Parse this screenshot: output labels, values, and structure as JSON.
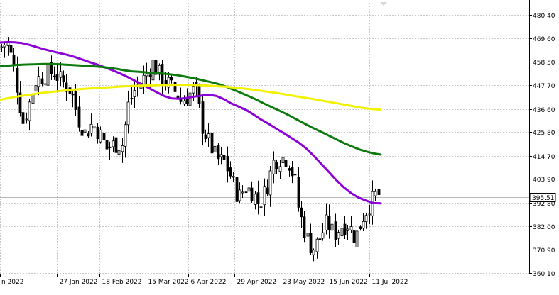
{
  "chart_data": {
    "type": "candlestick",
    "y_axis": {
      "ticks": [
        "480.40",
        "469.60",
        "458.50",
        "447.70",
        "436.60",
        "425.80",
        "414.70",
        "403.90",
        "392.80",
        "382.00",
        "370.90",
        "360.10"
      ],
      "range": [
        360.1,
        480.4
      ],
      "position": "right"
    },
    "x_axis": {
      "tick_labels": [
        "n 2022",
        "27 Jan 2022",
        "18 Feb 2022",
        "15 Mar 2022",
        "6 Apr 2022",
        "29 Apr 2022",
        "23 May 2022",
        "15 Jun 2022",
        "11 Jul 2022"
      ]
    },
    "current_price": "395.51",
    "grid": true,
    "colors": {
      "candle_up": "#ffffff",
      "candle_down": "#000000",
      "candle_border": "#000000",
      "ma_fast": "#8b00d6",
      "ma_mid": "#0d7a0d",
      "ma_slow": "#f2f200",
      "grid": "#c8c8c8",
      "price_line": "#b8b8b8"
    },
    "moving_averages": [
      {
        "values": [
          467.5,
          467.7,
          467.6,
          467.2,
          466.4,
          465.3,
          464.3,
          463.4,
          462.6,
          461.8,
          460.8,
          459.6,
          458.4,
          457.3,
          456.0,
          454.7,
          453.2,
          451.6,
          449.8,
          448.0,
          446.2,
          444.3,
          442.6,
          441.5,
          441.3,
          441.7,
          442.3,
          442.8,
          443.2,
          442.6,
          441.1,
          439.1,
          437.6,
          436.0,
          433.9,
          431.6,
          429.6,
          427.4,
          425.3,
          423.1,
          420.9,
          418.2,
          414.8,
          411.1,
          407.4,
          403.6,
          400.2,
          397.4,
          395.3,
          393.9,
          392.7,
          392.6
        ]
      },
      {
        "values": [
          456.4,
          456.7,
          457.0,
          457.2,
          457.3,
          457.4,
          457.5,
          457.5,
          457.4,
          457.2,
          457.0,
          456.8,
          456.6,
          456.4,
          456.1,
          455.7,
          455.2,
          454.6,
          454.1,
          453.9,
          453.6,
          453.3,
          453.1,
          452.8,
          452.4,
          451.8,
          451.2,
          450.5,
          449.7,
          448.9,
          448.0,
          446.8,
          445.4,
          443.9,
          442.5,
          440.9,
          439.2,
          437.6,
          436.0,
          434.4,
          432.6,
          430.8,
          429.0,
          427.3,
          425.7,
          424.0,
          422.3,
          420.6,
          419.2,
          417.8,
          416.7,
          415.9,
          415.3
        ]
      },
      {
        "values": [
          440.8,
          441.8,
          442.6,
          443.3,
          444.0,
          444.5,
          445.0,
          445.5,
          445.9,
          446.2,
          446.5,
          446.8,
          447.1,
          447.3,
          447.5,
          447.6,
          447.7,
          447.8,
          447.8,
          447.7,
          447.5,
          447.2,
          446.9,
          446.4,
          445.9,
          445.3,
          444.6,
          443.9,
          443.1,
          442.3,
          441.5,
          440.7,
          439.8,
          439.0,
          438.1,
          437.2,
          436.6,
          436.2
        ]
      }
    ]
  }
}
